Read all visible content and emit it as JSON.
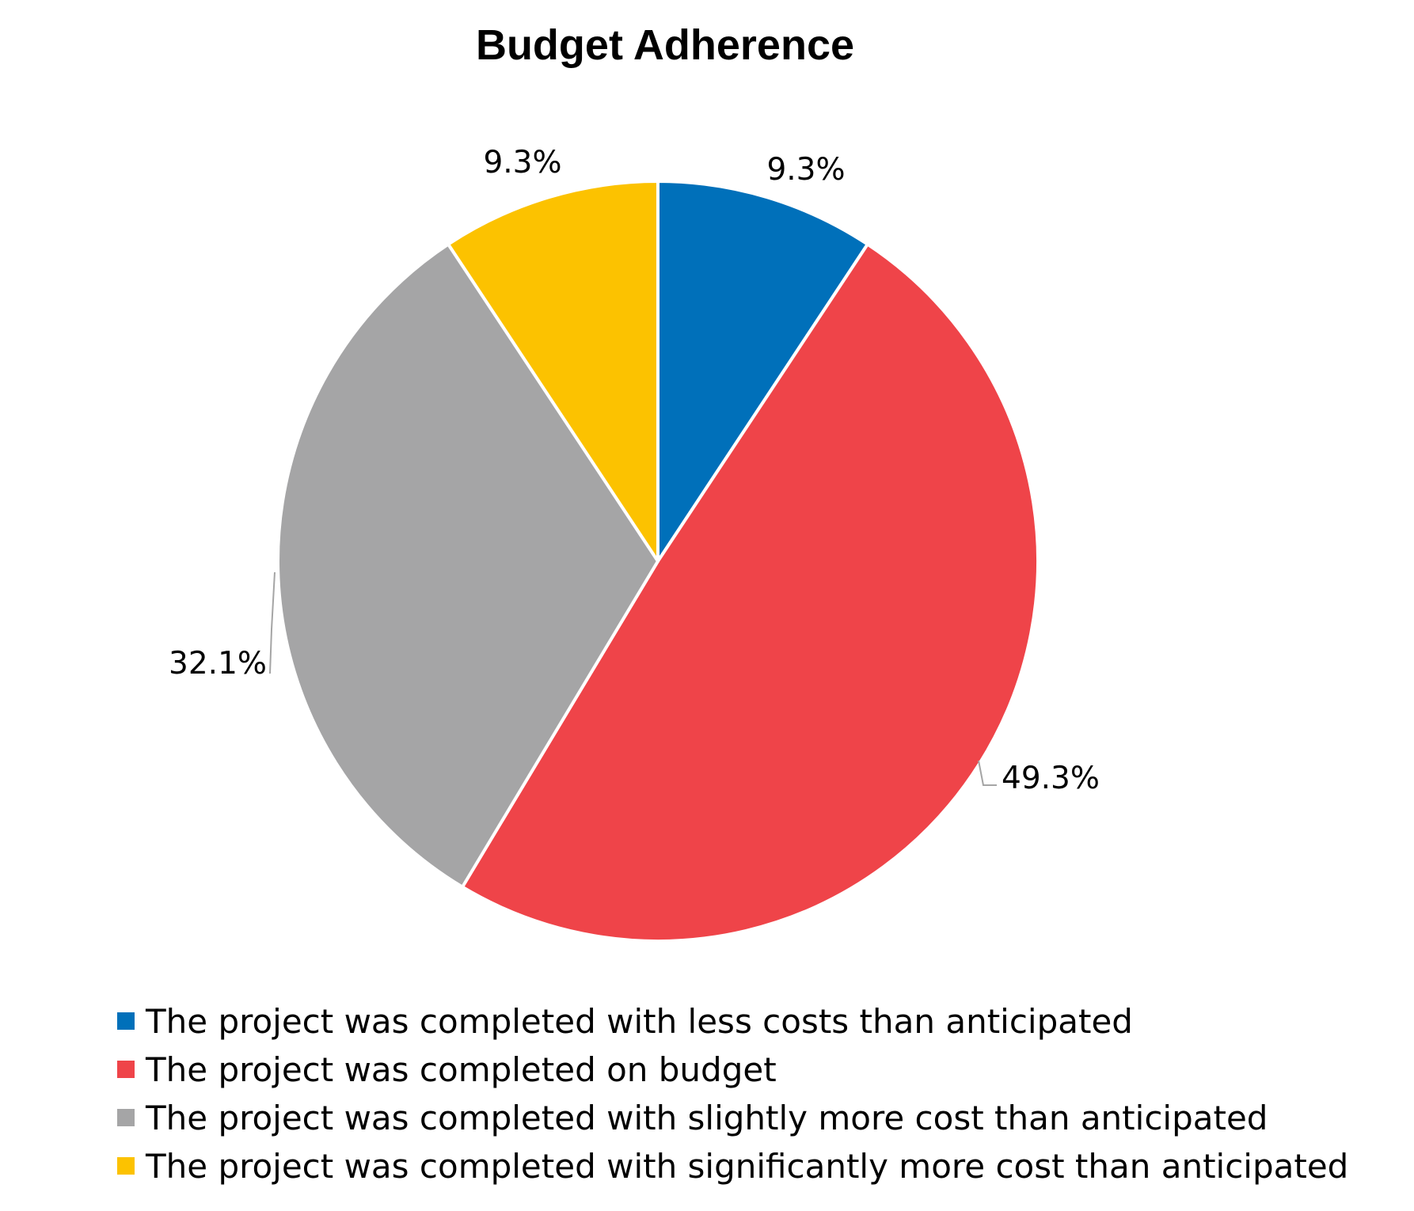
{
  "chart_data": {
    "type": "pie",
    "title": "Budget Adherence",
    "start_angle": "12 o'clock",
    "direction": "clockwise",
    "slices": [
      {
        "label": "The project was completed with less costs than anticipated",
        "value": 9.3,
        "display": "9.3%",
        "color": "#0070BA"
      },
      {
        "label": "The project was completed on budget",
        "value": 49.3,
        "display": "49.3%",
        "color": "#EF4449"
      },
      {
        "label": "The project was completed with slightly more cost than anticipated",
        "value": 32.1,
        "display": "32.1%",
        "color": "#A5A5A6"
      },
      {
        "label": "The project was completed with significantly more cost than anticipated",
        "value": 9.3,
        "display": "9.3%",
        "color": "#FCC200"
      }
    ],
    "legend": {
      "placement": "bottom"
    },
    "leader_line_color": "#A5A5A5"
  }
}
